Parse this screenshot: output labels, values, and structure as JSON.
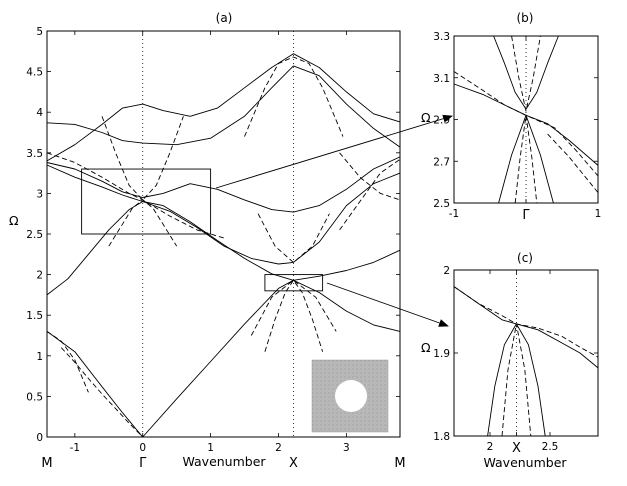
{
  "chart_data": [
    {
      "id": "a",
      "type": "line",
      "panel_label": "(a)",
      "xlabel": "Wavenumber",
      "ylabel": "Ω",
      "xlim": [
        -1.41,
        3.79
      ],
      "ylim": [
        0,
        5
      ],
      "xticks": [
        -1,
        0,
        1,
        2,
        3
      ],
      "yticks": [
        0,
        0.5,
        1,
        1.5,
        2,
        2.5,
        3,
        3.5,
        4,
        4.5,
        5
      ],
      "symmetry_points": [
        {
          "label": "M",
          "x": -1.41
        },
        {
          "label": "Γ",
          "x": 0
        },
        {
          "label": "X",
          "x": 2.22
        },
        {
          "label": "M",
          "x": 3.79
        }
      ],
      "guide_lines_x": [
        0,
        2.22
      ],
      "zoom_boxes": [
        {
          "x": [
            -0.9,
            1.0
          ],
          "y": [
            2.5,
            3.3
          ],
          "target": "b"
        },
        {
          "x": [
            1.8,
            2.65
          ],
          "y": [
            1.8,
            2.0
          ],
          "target": "c"
        }
      ],
      "inset": "unit-cell",
      "series": [
        {
          "style": "solid",
          "x": [
            -1.41,
            -1.0,
            -0.6,
            -0.3,
            0
          ],
          "y": [
            1.3,
            1.05,
            0.62,
            0.3,
            0.0
          ]
        },
        {
          "style": "solid",
          "x": [
            0,
            0.5,
            1.0,
            1.5,
            2.0,
            2.22,
            2.6,
            3.0,
            3.4,
            3.79
          ],
          "y": [
            0.0,
            0.47,
            0.93,
            1.39,
            1.83,
            1.93,
            1.78,
            1.55,
            1.38,
            1.3
          ]
        },
        {
          "style": "solid",
          "x": [
            -1.41,
            -1.1,
            -0.8,
            -0.5,
            -0.2,
            0,
            0.3,
            0.7,
            1.1,
            1.5,
            1.9,
            2.22,
            2.6,
            3.0,
            3.4,
            3.79
          ],
          "y": [
            1.75,
            1.95,
            2.25,
            2.55,
            2.8,
            2.9,
            2.85,
            2.65,
            2.42,
            2.2,
            2.01,
            1.93,
            1.98,
            2.05,
            2.15,
            2.3
          ]
        },
        {
          "style": "solid",
          "x": [
            -1.41,
            -1.0,
            -0.6,
            -0.3,
            0,
            0.4,
            0.8,
            1.2,
            1.6,
            2.0,
            2.22,
            2.6,
            3.0,
            3.4,
            3.79
          ],
          "y": [
            3.35,
            3.2,
            3.08,
            2.98,
            2.9,
            2.78,
            2.58,
            2.35,
            2.2,
            2.13,
            2.15,
            2.4,
            2.85,
            3.12,
            3.25
          ]
        },
        {
          "style": "solid",
          "x": [
            -1.41,
            -1.0,
            -0.6,
            -0.3,
            0,
            0.3,
            0.7,
            1.1,
            1.5,
            1.9,
            2.22,
            2.6,
            3.0,
            3.4,
            3.79
          ],
          "y": [
            3.38,
            3.3,
            3.15,
            3.02,
            2.95,
            3.0,
            3.12,
            3.05,
            2.92,
            2.8,
            2.77,
            2.85,
            3.05,
            3.3,
            3.45
          ]
        },
        {
          "style": "solid",
          "x": [
            -1.41,
            -1.0,
            -0.6,
            -0.3,
            0,
            0.5,
            1.0,
            1.5,
            1.9,
            2.22,
            2.6,
            3.0,
            3.4,
            3.79
          ],
          "y": [
            3.87,
            3.85,
            3.75,
            3.65,
            3.62,
            3.6,
            3.68,
            3.95,
            4.3,
            4.57,
            4.45,
            4.1,
            3.8,
            3.57
          ]
        },
        {
          "style": "solid",
          "x": [
            -1.41,
            -1.0,
            -0.6,
            -0.3,
            0,
            0.3,
            0.7,
            1.1,
            1.5,
            1.9,
            2.22,
            2.6,
            3.0,
            3.4,
            3.79
          ],
          "y": [
            3.4,
            3.6,
            3.85,
            4.05,
            4.1,
            4.02,
            3.95,
            4.05,
            4.3,
            4.55,
            4.72,
            4.55,
            4.25,
            3.98,
            3.88
          ]
        },
        {
          "style": "dashed",
          "x": [
            -1.2,
            -1.0,
            -0.8,
            -0.6,
            -0.4,
            -0.2,
            0
          ],
          "y": [
            1.1,
            0.92,
            0.72,
            0.53,
            0.35,
            0.17,
            0.0
          ]
        },
        {
          "style": "dashed",
          "x": [
            -1.41,
            -1.2,
            -1.0,
            -0.8
          ],
          "y": [
            1.3,
            1.18,
            0.95,
            0.55
          ]
        },
        {
          "style": "dashed",
          "x": [
            1.8,
            1.95,
            2.1,
            2.22,
            2.35,
            2.5,
            2.65
          ],
          "y": [
            1.05,
            1.45,
            1.78,
            1.93,
            1.78,
            1.45,
            1.05
          ]
        },
        {
          "style": "dashed",
          "x": [
            1.6,
            1.9,
            2.22,
            2.55,
            2.85
          ],
          "y": [
            1.25,
            1.72,
            1.93,
            1.72,
            1.3
          ]
        },
        {
          "style": "dashed",
          "x": [
            -0.6,
            -0.4,
            -0.2,
            0,
            0.2,
            0.4,
            0.6
          ],
          "y": [
            3.95,
            3.5,
            3.1,
            2.92,
            3.1,
            3.5,
            3.95
          ]
        },
        {
          "style": "dashed",
          "x": [
            -0.5,
            -0.3,
            -0.15,
            0,
            0.15,
            0.3,
            0.5
          ],
          "y": [
            2.35,
            2.62,
            2.82,
            2.92,
            2.82,
            2.62,
            2.35
          ]
        },
        {
          "style": "dashed",
          "x": [
            1.5,
            1.8,
            2.0,
            2.22,
            2.45,
            2.65,
            2.95
          ],
          "y": [
            3.7,
            4.3,
            4.6,
            4.68,
            4.6,
            4.3,
            3.7
          ]
        },
        {
          "style": "dashed",
          "x": [
            1.7,
            1.95,
            2.22,
            2.5,
            2.75
          ],
          "y": [
            2.75,
            2.35,
            2.15,
            2.35,
            2.75
          ]
        },
        {
          "style": "dashed",
          "x": [
            -1.41,
            -1.0,
            -0.6,
            -0.2,
            0,
            0.4,
            0.8,
            1.2
          ],
          "y": [
            3.5,
            3.38,
            3.2,
            3.0,
            2.92,
            2.72,
            2.55,
            2.45
          ]
        },
        {
          "style": "dashed",
          "x": [
            2.9,
            3.2,
            3.5,
            3.79
          ],
          "y": [
            3.5,
            3.2,
            3.0,
            2.92
          ]
        },
        {
          "style": "dashed",
          "x": [
            2.9,
            3.2,
            3.5,
            3.79
          ],
          "y": [
            2.55,
            2.9,
            3.25,
            3.42
          ]
        }
      ]
    },
    {
      "id": "b",
      "type": "line",
      "panel_label": "(b)",
      "xlabel": "",
      "ylabel": "Ω",
      "xlim": [
        -1,
        1
      ],
      "ylim": [
        2.5,
        3.3
      ],
      "xticks": [
        -1,
        0,
        1
      ],
      "xtick_labels": [
        "-1",
        "Γ",
        "1"
      ],
      "yticks": [
        2.5,
        2.7,
        2.9,
        3.1,
        3.3
      ],
      "guide_lines_x": [
        0
      ],
      "series": [
        {
          "style": "solid",
          "x": [
            -0.45,
            -0.3,
            -0.15,
            0,
            0.15,
            0.3,
            0.45
          ],
          "y": [
            3.3,
            3.17,
            3.03,
            2.95,
            3.03,
            3.17,
            3.3
          ]
        },
        {
          "style": "solid",
          "x": [
            -1,
            -0.6,
            -0.3,
            0,
            0.3,
            0.6,
            1
          ],
          "y": [
            3.07,
            3.02,
            2.97,
            2.92,
            2.88,
            2.8,
            2.68
          ]
        },
        {
          "style": "solid",
          "x": [
            -0.38,
            -0.2,
            0,
            0.2,
            0.38
          ],
          "y": [
            2.5,
            2.73,
            2.92,
            2.73,
            2.5
          ]
        },
        {
          "style": "dashed",
          "x": [
            -0.2,
            -0.1,
            0,
            0.1,
            0.2
          ],
          "y": [
            3.3,
            3.1,
            2.94,
            3.1,
            3.3
          ]
        },
        {
          "style": "dashed",
          "x": [
            -0.15,
            -0.08,
            0,
            0.08,
            0.15
          ],
          "y": [
            2.5,
            2.72,
            2.92,
            2.72,
            2.5
          ]
        },
        {
          "style": "dashed",
          "x": [
            -1,
            -0.6,
            -0.3,
            0,
            0.4,
            0.7,
            1
          ],
          "y": [
            3.13,
            3.04,
            2.97,
            2.92,
            2.86,
            2.75,
            2.63
          ]
        },
        {
          "style": "dashed",
          "x": [
            0.3,
            0.6,
            1
          ],
          "y": [
            2.83,
            2.72,
            2.55
          ]
        }
      ]
    },
    {
      "id": "c",
      "type": "line",
      "panel_label": "(c)",
      "xlabel": "Wavenumber",
      "ylabel": "Ω",
      "xlim": [
        1.7,
        2.9
      ],
      "ylim": [
        1.8,
        2.0
      ],
      "xticks": [
        2,
        2.22,
        2.5
      ],
      "xtick_labels": [
        "2",
        "X",
        "2.5"
      ],
      "yticks": [
        1.8,
        1.9,
        2.0
      ],
      "guide_lines_x": [
        2.22
      ],
      "series": [
        {
          "style": "solid",
          "x": [
            1.7,
            1.8,
            1.9,
            2.0,
            2.1,
            2.22,
            2.4,
            2.6,
            2.75,
            2.9
          ],
          "y": [
            1.98,
            1.97,
            1.96,
            1.95,
            1.94,
            1.935,
            1.928,
            1.912,
            1.9,
            1.882
          ]
        },
        {
          "style": "solid",
          "x": [
            1.98,
            2.04,
            2.12,
            2.22,
            2.32,
            2.4,
            2.46
          ],
          "y": [
            1.8,
            1.86,
            1.91,
            1.935,
            1.91,
            1.86,
            1.8
          ]
        },
        {
          "style": "dashed",
          "x": [
            2.1,
            2.15,
            2.22,
            2.29,
            2.34
          ],
          "y": [
            1.8,
            1.88,
            1.935,
            1.88,
            1.8
          ]
        },
        {
          "style": "dashed",
          "x": [
            1.7,
            1.9,
            2.1,
            2.22,
            2.4,
            2.6,
            2.75,
            2.9
          ],
          "y": [
            1.98,
            1.96,
            1.945,
            1.935,
            1.93,
            1.92,
            1.907,
            1.895
          ]
        }
      ]
    }
  ]
}
